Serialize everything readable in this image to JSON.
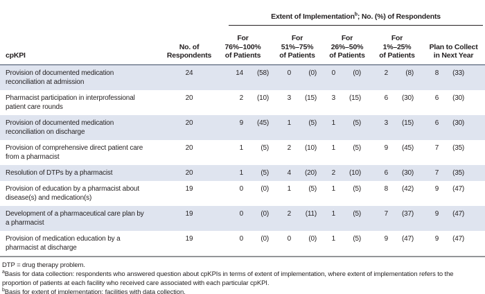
{
  "colors": {
    "row_shade": "#dfe4ef",
    "header_rule": "#3b4a63",
    "spanner_rule": "#231f20",
    "bottom_rule": "#939598",
    "text": "#231f20"
  },
  "table": {
    "spanner": {
      "pre": "Extent of Implementation",
      "sup": "b",
      "post": "; No. (%) of Respondents"
    },
    "headers": {
      "cpkpi": "cpKPI",
      "respondents": "No. of\nRespondents",
      "groups": [
        "For\n76%–100%\nof Patients",
        "For\n51%–75%\nof Patients",
        "For\n26%–50%\nof Patients",
        "For\n1%–25%\nof Patients",
        "Plan to Collect\nin Next Year"
      ]
    },
    "rows": [
      {
        "label": "Provision of documented medication\nreconciliation at admission",
        "respondents": "24",
        "cells": [
          [
            "14",
            "(58)"
          ],
          [
            "0",
            "(0)"
          ],
          [
            "0",
            "(0)"
          ],
          [
            "2",
            "(8)"
          ],
          [
            "8",
            "(33)"
          ]
        ]
      },
      {
        "label": "Pharmacist participation in interprofessional\npatient care rounds",
        "respondents": "20",
        "cells": [
          [
            "2",
            "(10)"
          ],
          [
            "3",
            "(15)"
          ],
          [
            "3",
            "(15)"
          ],
          [
            "6",
            "(30)"
          ],
          [
            "6",
            "(30)"
          ]
        ]
      },
      {
        "label": "Provision of documented medication\nreconciliation on discharge",
        "respondents": "20",
        "cells": [
          [
            "9",
            "(45)"
          ],
          [
            "1",
            "(5)"
          ],
          [
            "1",
            "(5)"
          ],
          [
            "3",
            "(15)"
          ],
          [
            "6",
            "(30)"
          ]
        ]
      },
      {
        "label": "Provision of comprehensive direct patient care\nfrom a pharmacist",
        "respondents": "20",
        "cells": [
          [
            "1",
            "(5)"
          ],
          [
            "2",
            "(10)"
          ],
          [
            "1",
            "(5)"
          ],
          [
            "9",
            "(45)"
          ],
          [
            "7",
            "(35)"
          ]
        ]
      },
      {
        "label": "Resolution of DTPs by a pharmacist",
        "respondents": "20",
        "cells": [
          [
            "1",
            "(5)"
          ],
          [
            "4",
            "(20)"
          ],
          [
            "2",
            "(10)"
          ],
          [
            "6",
            "(30)"
          ],
          [
            "7",
            "(35)"
          ]
        ]
      },
      {
        "label": "Provision of education by a pharmacist about\ndisease(s) and medication(s)",
        "respondents": "19",
        "cells": [
          [
            "0",
            "(0)"
          ],
          [
            "1",
            "(5)"
          ],
          [
            "1",
            "(5)"
          ],
          [
            "8",
            "(42)"
          ],
          [
            "9",
            "(47)"
          ]
        ]
      },
      {
        "label": "Development of a pharmaceutical care plan by\na pharmacist",
        "respondents": "19",
        "cells": [
          [
            "0",
            "(0)"
          ],
          [
            "2",
            "(11)"
          ],
          [
            "1",
            "(5)"
          ],
          [
            "7",
            "(37)"
          ],
          [
            "9",
            "(47)"
          ]
        ]
      },
      {
        "label": "Provision of medication education by a\npharmacist at discharge",
        "respondents": "19",
        "cells": [
          [
            "0",
            "(0)"
          ],
          [
            "0",
            "(0)"
          ],
          [
            "1",
            "(5)"
          ],
          [
            "9",
            "(47)"
          ],
          [
            "9",
            "(47)"
          ]
        ]
      }
    ]
  },
  "footnotes": {
    "abbrev": "DTP = drug therapy problem.",
    "a_sup": "a",
    "a_text": "Basis for data collection: respondents who answered question about cpKPIs in terms of extent of implementation, where extent of implementation refers to the\nproportion of patients at each facility who received care associated with each particular cpKPI.",
    "b_sup": "b",
    "b_text": "Basis for extent of implementation: facilities with data collection."
  }
}
